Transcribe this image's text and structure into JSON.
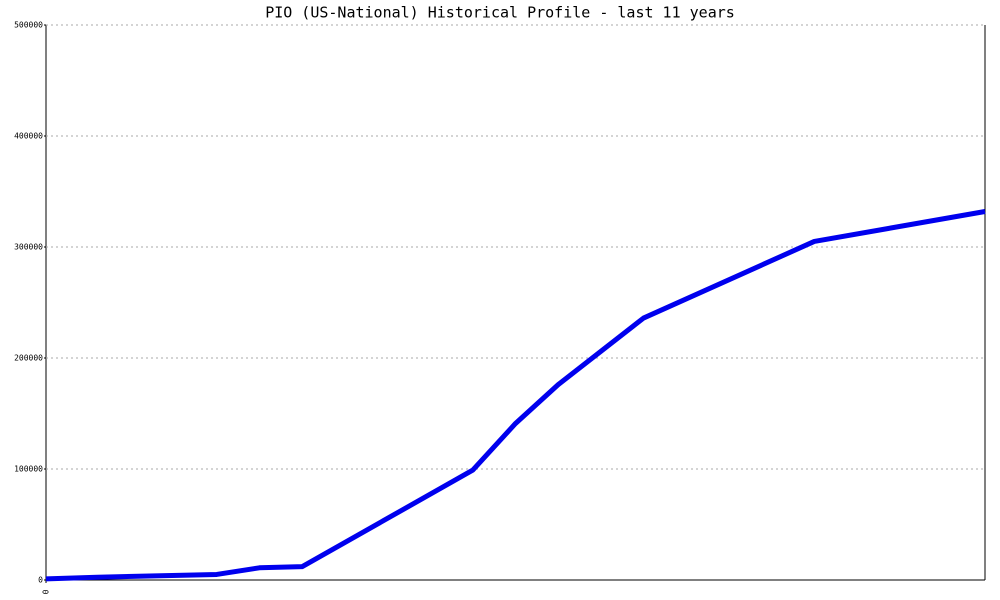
{
  "chart_data": {
    "type": "line",
    "title": "PIO (US-National) Historical Profile - last 11 years",
    "x": [
      0,
      0.6,
      2,
      2.5,
      3,
      5,
      5.5,
      6,
      7,
      9,
      11
    ],
    "series": [
      {
        "color": "#0000ee",
        "values": [
          1000,
          2500,
          5000,
          11000,
          12000,
          99000,
          141000,
          176000,
          236000,
          305000,
          332000
        ]
      }
    ],
    "xlim": [
      0,
      11
    ],
    "xticks": [
      0
    ],
    "ylim": [
      0,
      500000
    ],
    "yticks": [
      0,
      100000,
      200000,
      300000,
      400000,
      500000
    ],
    "grid": true
  }
}
